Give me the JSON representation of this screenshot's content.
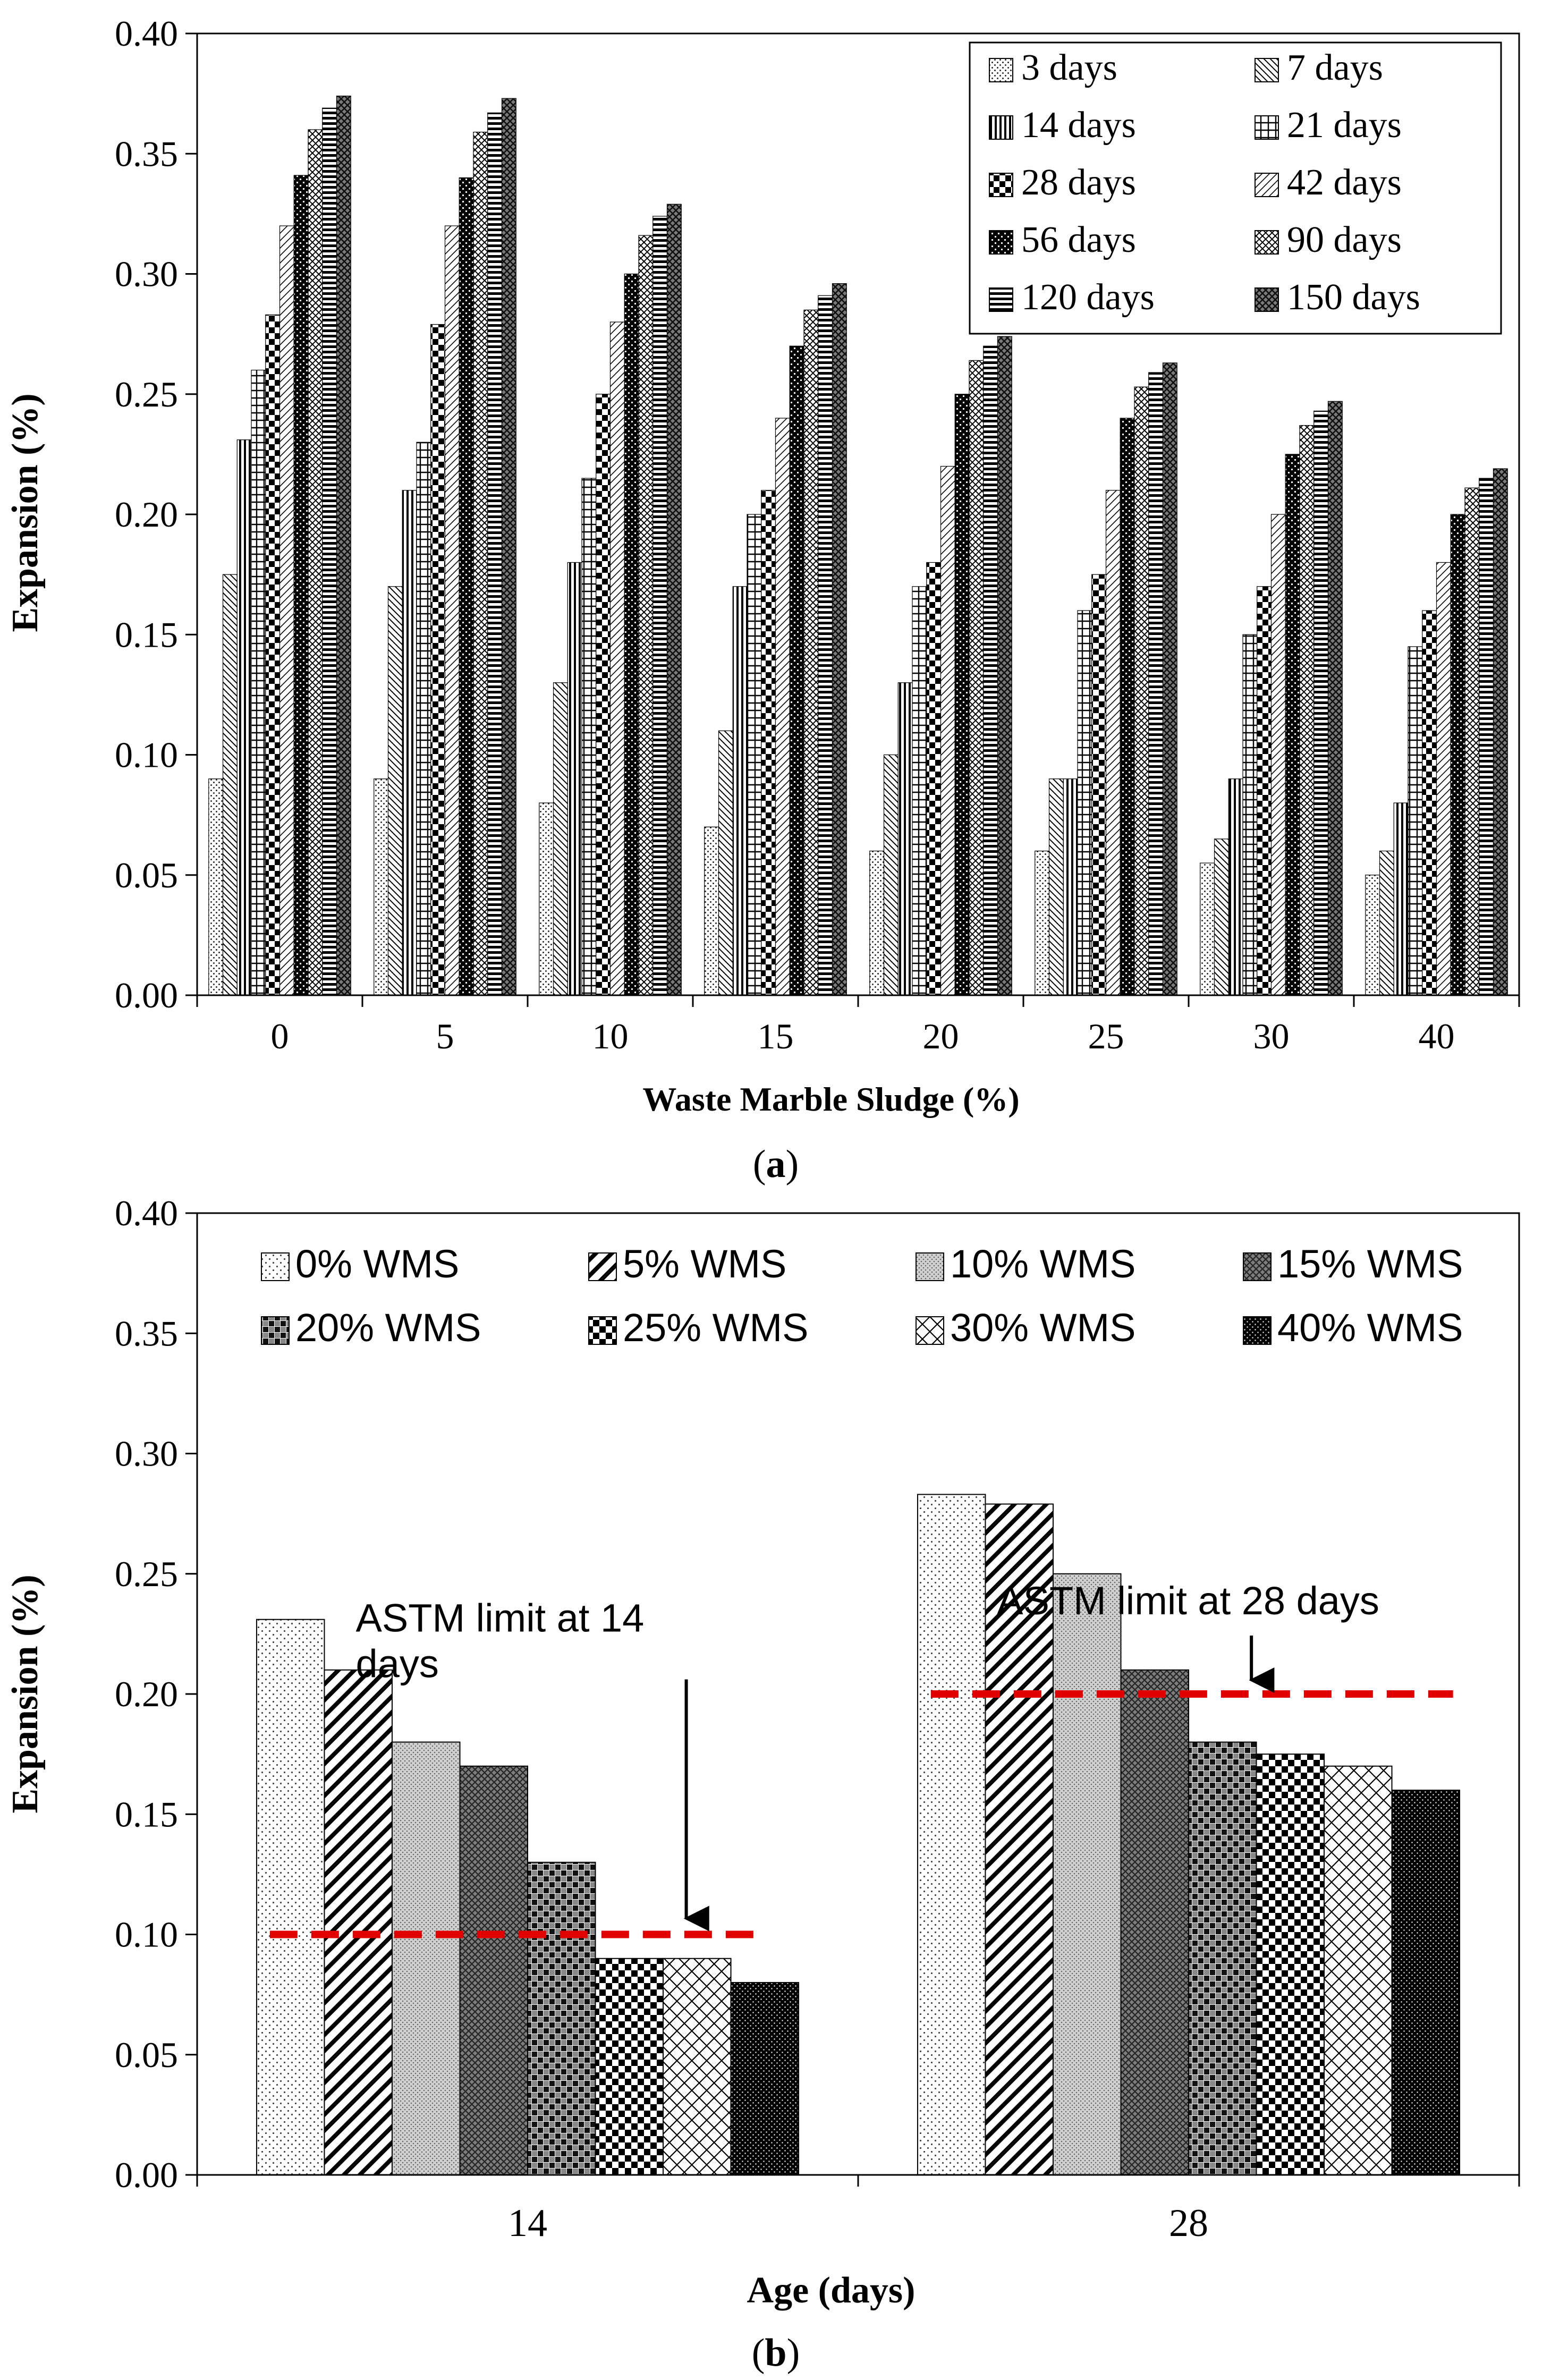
{
  "chart_data": [
    {
      "type": "bar",
      "caption": "(a)",
      "caption_parts": {
        "open": "(",
        "letter": "a",
        "close": ")"
      },
      "title": "",
      "xlabel": "Waste Marble Sludge (%)",
      "ylabel": "Expansion (%)",
      "ylim": [
        0,
        0.4
      ],
      "yticks": [
        "0.00",
        "0.05",
        "0.10",
        "0.15",
        "0.20",
        "0.25",
        "0.30",
        "0.35",
        "0.40"
      ],
      "legend_position": "top-right",
      "categories": [
        "0",
        "5",
        "10",
        "15",
        "20",
        "25",
        "30",
        "40"
      ],
      "series": [
        {
          "name": "3 days",
          "pattern": "pa0",
          "values": [
            0.09,
            0.09,
            0.08,
            0.07,
            0.06,
            0.06,
            0.055,
            0.05
          ]
        },
        {
          "name": "7 days",
          "pattern": "pa1",
          "values": [
            0.175,
            0.17,
            0.13,
            0.11,
            0.1,
            0.09,
            0.065,
            0.06
          ]
        },
        {
          "name": "14 days",
          "pattern": "pa2",
          "values": [
            0.231,
            0.21,
            0.18,
            0.17,
            0.13,
            0.09,
            0.09,
            0.08
          ]
        },
        {
          "name": "21 days",
          "pattern": "pa3",
          "values": [
            0.26,
            0.23,
            0.215,
            0.2,
            0.17,
            0.16,
            0.15,
            0.145
          ]
        },
        {
          "name": "28 days",
          "pattern": "pa4",
          "values": [
            0.283,
            0.279,
            0.25,
            0.21,
            0.18,
            0.175,
            0.17,
            0.16
          ]
        },
        {
          "name": "42 days",
          "pattern": "pa5",
          "values": [
            0.32,
            0.32,
            0.28,
            0.24,
            0.22,
            0.21,
            0.2,
            0.18
          ]
        },
        {
          "name": "56 days",
          "pattern": "pa6",
          "values": [
            0.341,
            0.34,
            0.3,
            0.27,
            0.25,
            0.24,
            0.225,
            0.2
          ]
        },
        {
          "name": "90 days",
          "pattern": "pa7",
          "values": [
            0.36,
            0.359,
            0.316,
            0.285,
            0.264,
            0.253,
            0.237,
            0.211
          ]
        },
        {
          "name": "120 days",
          "pattern": "pa8",
          "values": [
            0.369,
            0.367,
            0.324,
            0.291,
            0.27,
            0.259,
            0.243,
            0.215
          ]
        },
        {
          "name": "150 days",
          "pattern": "pa9",
          "values": [
            0.374,
            0.373,
            0.329,
            0.296,
            0.274,
            0.263,
            0.247,
            0.219
          ]
        }
      ]
    },
    {
      "type": "bar",
      "caption": "(b)",
      "caption_parts": {
        "open": "(",
        "letter": "b",
        "close": ")"
      },
      "title": "",
      "xlabel": "Age (days)",
      "ylabel": "Expansion (%)",
      "ylim": [
        0,
        0.4
      ],
      "yticks": [
        "0.00",
        "0.05",
        "0.10",
        "0.15",
        "0.20",
        "0.25",
        "0.30",
        "0.35",
        "0.40"
      ],
      "legend_position": "top",
      "categories": [
        "14",
        "28"
      ],
      "series": [
        {
          "name": "0% WMS",
          "pattern": "pb0",
          "values": [
            0.231,
            0.283
          ]
        },
        {
          "name": "5% WMS",
          "pattern": "pb1",
          "values": [
            0.21,
            0.279
          ]
        },
        {
          "name": "10% WMS",
          "pattern": "pb2",
          "values": [
            0.18,
            0.25
          ]
        },
        {
          "name": "15% WMS",
          "pattern": "pb3",
          "values": [
            0.17,
            0.21
          ]
        },
        {
          "name": "20% WMS",
          "pattern": "pb4",
          "values": [
            0.13,
            0.18
          ]
        },
        {
          "name": "25% WMS",
          "pattern": "pb5",
          "values": [
            0.09,
            0.175
          ]
        },
        {
          "name": "30% WMS",
          "pattern": "pb6",
          "values": [
            0.09,
            0.17
          ]
        },
        {
          "name": "40% WMS",
          "pattern": "pb7",
          "values": [
            0.08,
            0.16
          ]
        }
      ],
      "reference_lines": [
        {
          "category": "14",
          "value": 0.1,
          "color": "#e00000",
          "label_lines": [
            "ASTM limit at 14",
            "days"
          ]
        },
        {
          "category": "28",
          "value": 0.2,
          "color": "#e00000",
          "label_lines": [
            "ASTM limit at 28 days"
          ]
        }
      ]
    }
  ]
}
